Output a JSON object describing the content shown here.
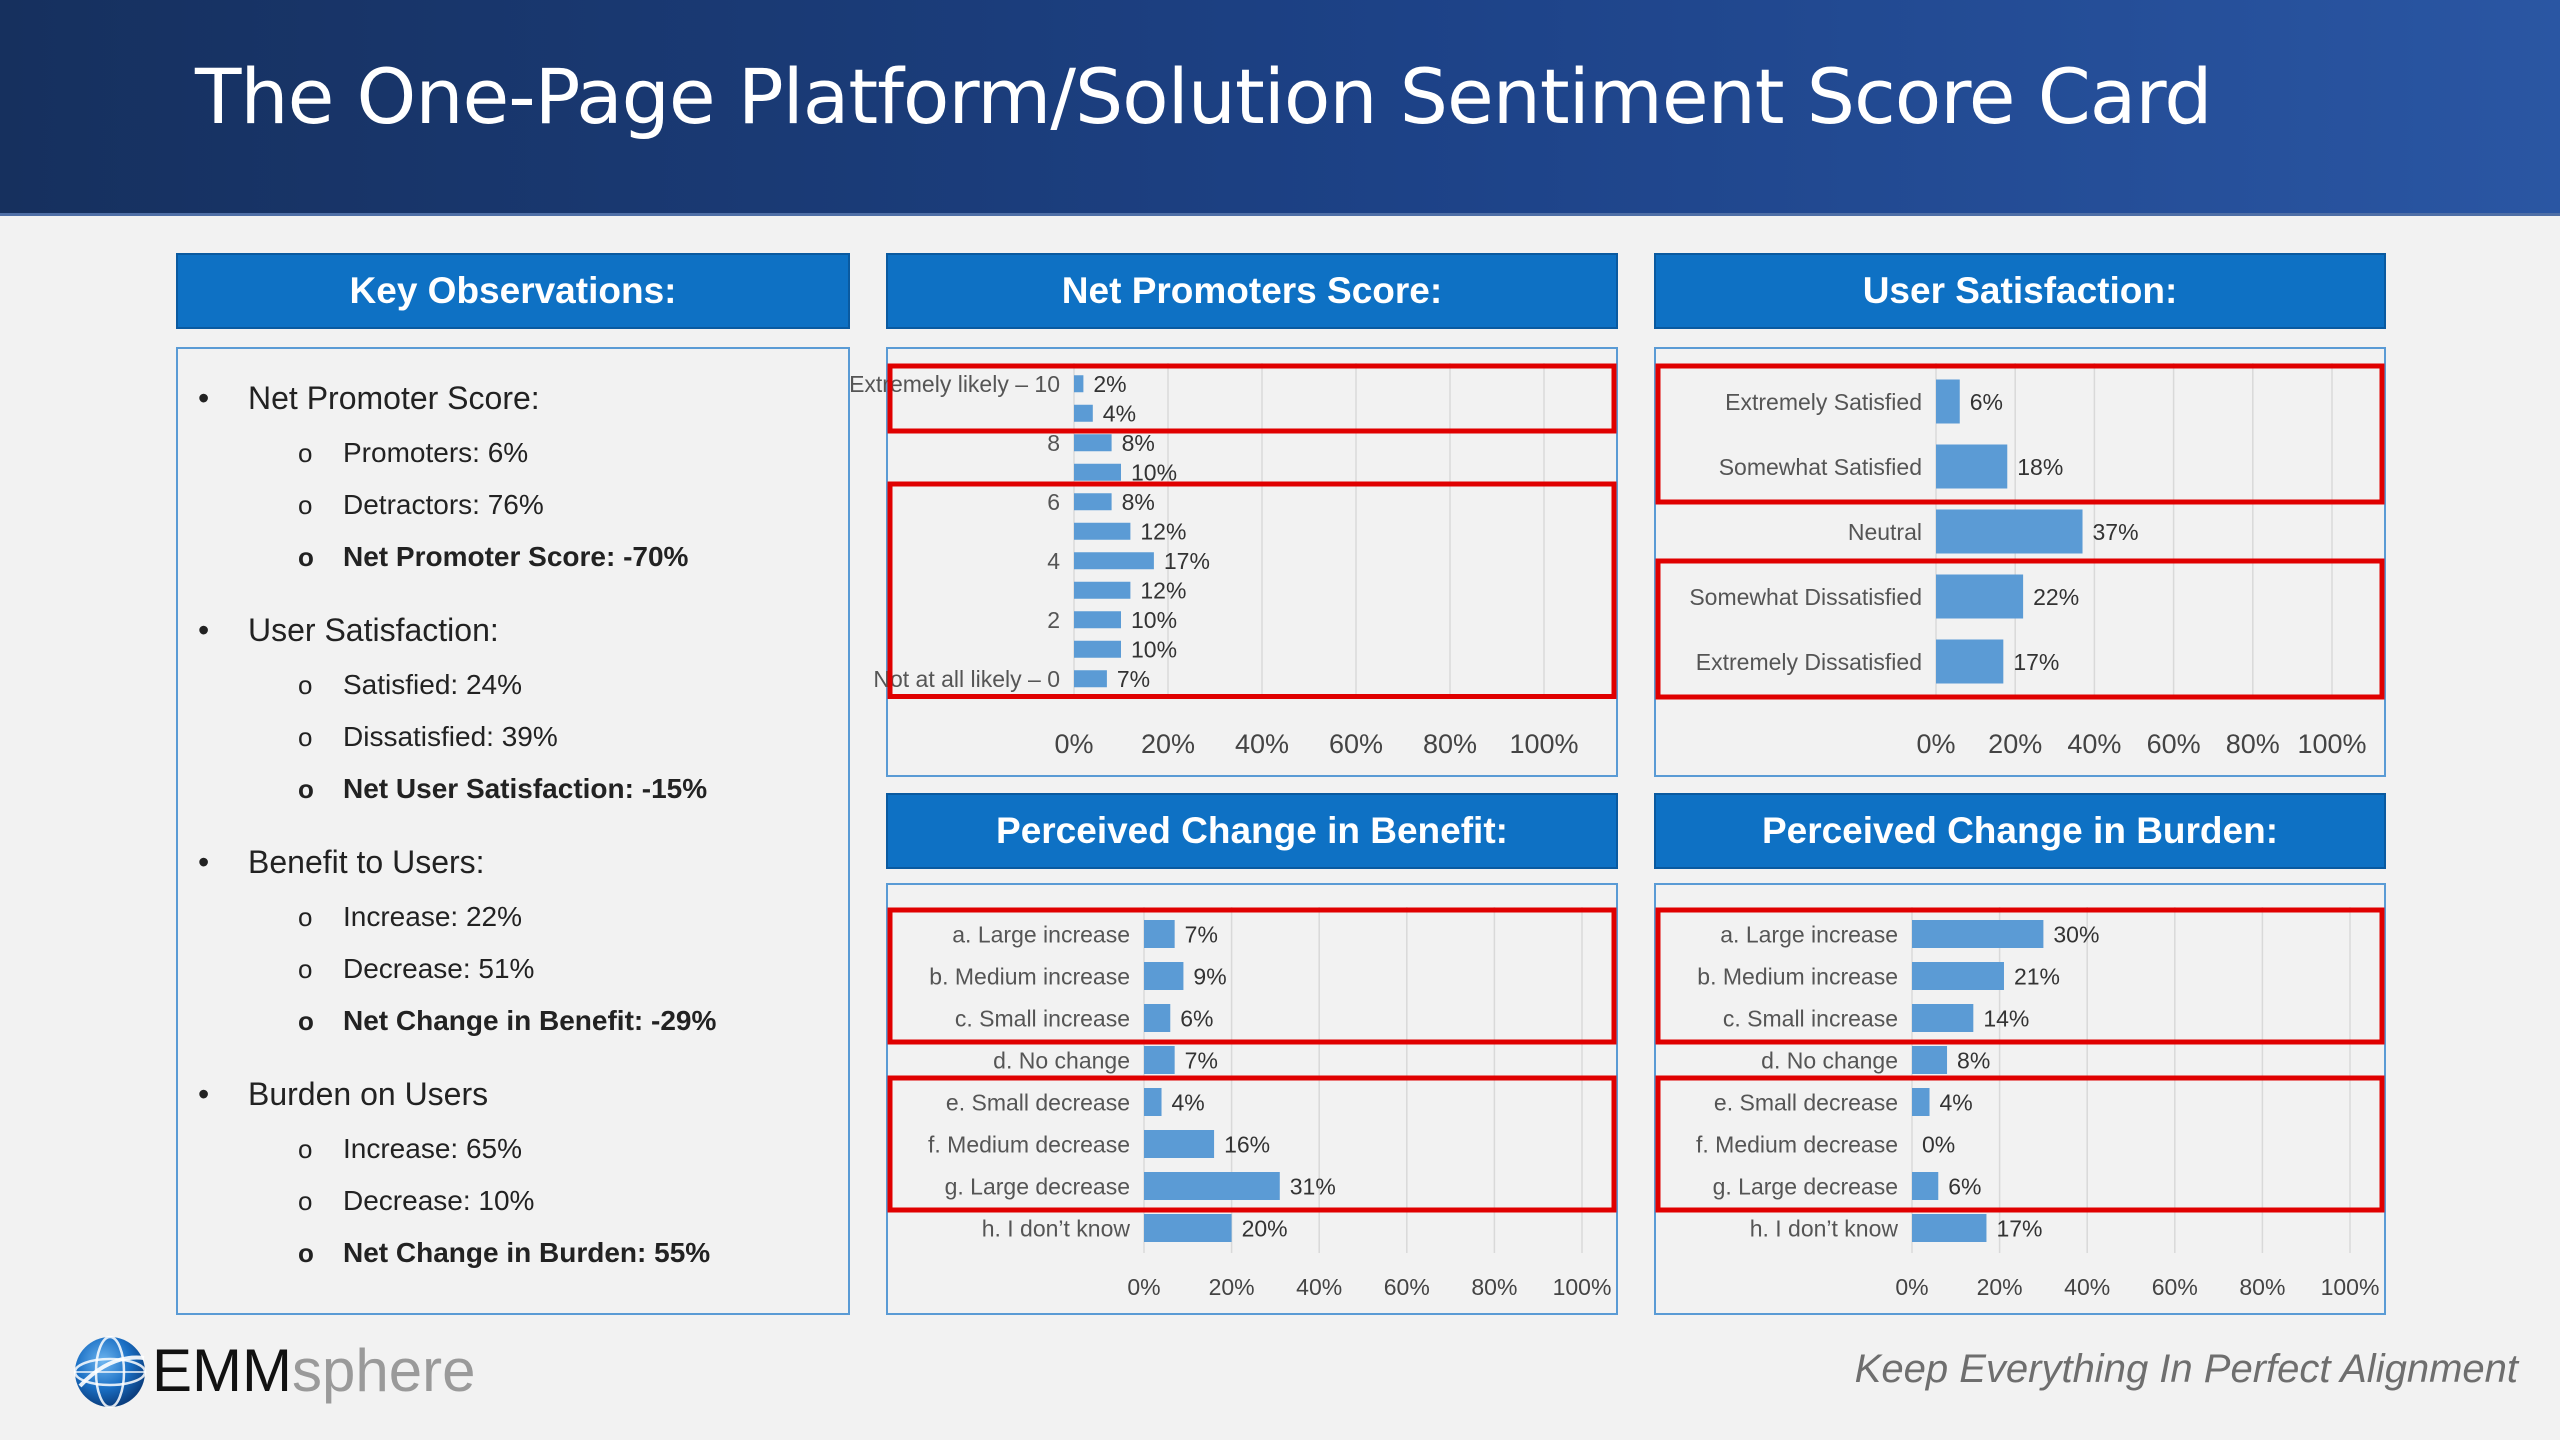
{
  "page": {
    "title": "The One-Page Platform/Solution Sentiment Score Card",
    "tagline": "Keep Everything In Perfect Alignment",
    "brand": {
      "emm": "EMM",
      "sphere": "sphere"
    }
  },
  "colors": {
    "bar": "#5b9bd5",
    "header": "#0e71c4",
    "highlight": "#e00000",
    "gridline": "#d9d9d9"
  },
  "observations": {
    "header": "Key Observations:",
    "sections": [
      {
        "title": "Net Promoter Score:",
        "items": [
          {
            "text": "Promoters:  6%",
            "bold": false
          },
          {
            "text": "Detractors:  76%",
            "bold": false
          },
          {
            "text": "Net Promoter Score:  -70%",
            "bold": true
          }
        ]
      },
      {
        "title": "User Satisfaction:",
        "items": [
          {
            "text": "Satisfied:  24%",
            "bold": false
          },
          {
            "text": "Dissatisfied:  39%",
            "bold": false
          },
          {
            "text": "Net User Satisfaction:  -15%",
            "bold": true
          }
        ]
      },
      {
        "title": "Benefit to Users:",
        "items": [
          {
            "text": "Increase:  22%",
            "bold": false
          },
          {
            "text": "Decrease:  51%",
            "bold": false
          },
          {
            "text": "Net Change in Benefit:  -29%",
            "bold": true
          }
        ]
      },
      {
        "title": "Burden on Users",
        "items": [
          {
            "text": "Increase:  65%",
            "bold": false
          },
          {
            "text": "Decrease:  10%",
            "bold": false
          },
          {
            "text": "Net Change in Burden:  55%",
            "bold": true
          }
        ]
      }
    ]
  },
  "chart_data": [
    {
      "id": "nps",
      "type": "bar",
      "orientation": "horizontal",
      "title": "Net Promoters Score:",
      "categories": [
        "Extremely likely – 10",
        "",
        "8",
        "",
        "6",
        "",
        "4",
        "",
        "2",
        "",
        "Not at all likely – 0"
      ],
      "values": [
        2,
        4,
        8,
        10,
        8,
        12,
        17,
        12,
        10,
        10,
        7
      ],
      "xlim": [
        0,
        100
      ],
      "xticks": [
        "0%",
        "20%",
        "40%",
        "60%",
        "80%",
        "100%"
      ],
      "highlight_groups": [
        [
          0,
          1
        ],
        [
          4,
          10
        ]
      ]
    },
    {
      "id": "satisfaction",
      "type": "bar",
      "orientation": "horizontal",
      "title": "User Satisfaction:",
      "categories": [
        "Extremely Satisfied",
        "Somewhat Satisfied",
        "Neutral",
        "Somewhat Dissatisfied",
        "Extremely Dissatisfied"
      ],
      "values": [
        6,
        18,
        37,
        22,
        17
      ],
      "xlim": [
        0,
        100
      ],
      "xticks": [
        "0%",
        "20%",
        "40%",
        "60%",
        "80%",
        "100%"
      ],
      "highlight_groups": [
        [
          0,
          1
        ],
        [
          3,
          4
        ]
      ]
    },
    {
      "id": "benefit",
      "type": "bar",
      "orientation": "horizontal",
      "title": "Perceived Change in Benefit:",
      "categories": [
        "a. Large increase",
        "b. Medium increase",
        "c. Small increase",
        "d. No change",
        "e. Small decrease",
        "f. Medium decrease",
        "g. Large decrease",
        "h. I don’t know"
      ],
      "values": [
        7,
        9,
        6,
        7,
        4,
        16,
        31,
        20
      ],
      "xlim": [
        0,
        100
      ],
      "xticks": [
        "0%",
        "20%",
        "40%",
        "60%",
        "80%",
        "100%"
      ],
      "highlight_groups": [
        [
          0,
          2
        ],
        [
          4,
          6
        ]
      ]
    },
    {
      "id": "burden",
      "type": "bar",
      "orientation": "horizontal",
      "title": "Perceived Change in Burden:",
      "categories": [
        "a. Large increase",
        "b. Medium increase",
        "c. Small increase",
        "d. No change",
        "e. Small decrease",
        "f. Medium decrease",
        "g. Large decrease",
        "h. I don’t know"
      ],
      "values": [
        30,
        21,
        14,
        8,
        4,
        0,
        6,
        17
      ],
      "xlim": [
        0,
        100
      ],
      "xticks": [
        "0%",
        "20%",
        "40%",
        "60%",
        "80%",
        "100%"
      ],
      "highlight_groups": [
        [
          0,
          2
        ],
        [
          4,
          6
        ]
      ]
    }
  ]
}
